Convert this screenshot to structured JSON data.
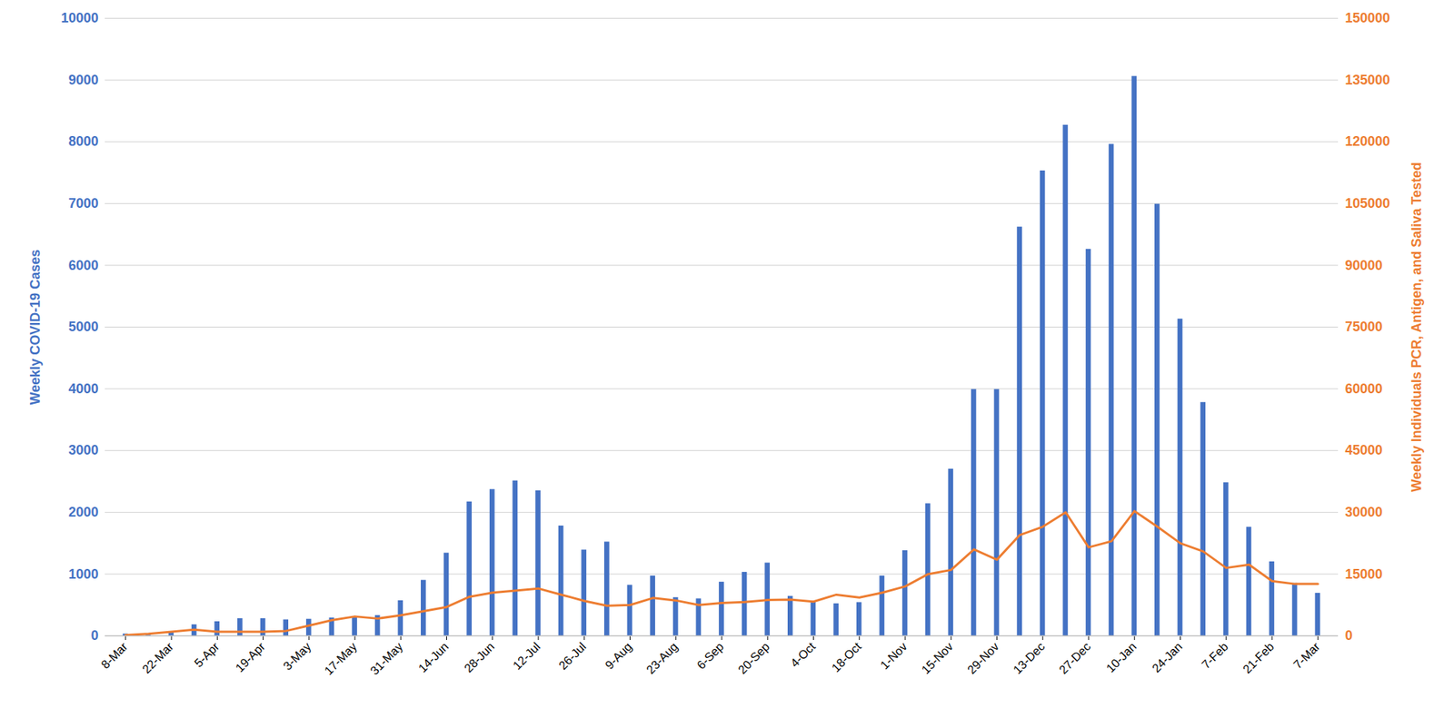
{
  "chart_data": {
    "type": "bar",
    "y_label": "Weekly COVID-19 Cases",
    "y2_label": "Weekly Individuals PCR, Antigen, and Saliva Tested",
    "categories": [
      "8-Mar",
      null,
      "22-Mar",
      null,
      "5-Apr",
      null,
      "19-Apr",
      null,
      "3-May",
      null,
      "17-May",
      null,
      "31-May",
      null,
      "14-Jun",
      null,
      "28-Jun",
      null,
      "12-Jul",
      null,
      "26-Jul",
      null,
      "9-Aug",
      null,
      "23-Aug",
      null,
      "6-Sep",
      null,
      "20-Sep",
      null,
      "4-Oct",
      null,
      "18-Oct",
      null,
      "1-Nov",
      null,
      "15-Nov",
      null,
      "29-Nov",
      null,
      "13-Dec",
      null,
      "27-Dec",
      null,
      "10-Jan",
      null,
      "24-Jan",
      null,
      "7-Feb",
      null,
      "21-Feb",
      null,
      "7-Mar"
    ],
    "series": [
      {
        "type": "bar",
        "color": "#4472c4",
        "values": [
          30,
          10,
          50,
          180,
          230,
          280,
          280,
          260,
          270,
          290,
          300,
          330,
          570,
          900,
          1340,
          2170,
          2370,
          2510,
          2350,
          1780,
          1390,
          1520,
          820,
          970,
          620,
          600,
          870,
          1030,
          1180,
          640,
          560,
          520,
          540,
          970,
          1380,
          2140,
          2700,
          3990,
          3990,
          6620,
          7530,
          8270,
          6260,
          7960,
          9060,
          6990,
          5130,
          3780,
          2480,
          1760,
          1200,
          850,
          690
        ]
      },
      {
        "type": "line",
        "color": "#ed7d31",
        "axis": "y2",
        "values": [
          200,
          500,
          1000,
          1500,
          1000,
          1000,
          1000,
          1200,
          2500,
          3800,
          4700,
          4200,
          5000,
          6000,
          7000,
          9500,
          10500,
          11000,
          11500,
          10000,
          8500,
          7300,
          7500,
          9200,
          8600,
          7500,
          8000,
          8200,
          8700,
          8800,
          8300,
          10000,
          9300,
          10500,
          12000,
          15000,
          16000,
          21000,
          18500,
          24500,
          26500,
          30000,
          21500,
          23000,
          30300,
          26500,
          22500,
          20500,
          16500,
          17300,
          13300,
          12600,
          12600
        ]
      }
    ],
    "ylim": [
      0,
      10000
    ],
    "yticks": [
      0,
      1000,
      2000,
      3000,
      4000,
      5000,
      6000,
      7000,
      8000,
      9000,
      10000
    ],
    "y2lim": [
      0,
      150000
    ],
    "y2ticks": [
      0,
      15000,
      30000,
      45000,
      60000,
      75000,
      90000,
      105000,
      120000,
      135000,
      150000
    ],
    "grid": true
  }
}
